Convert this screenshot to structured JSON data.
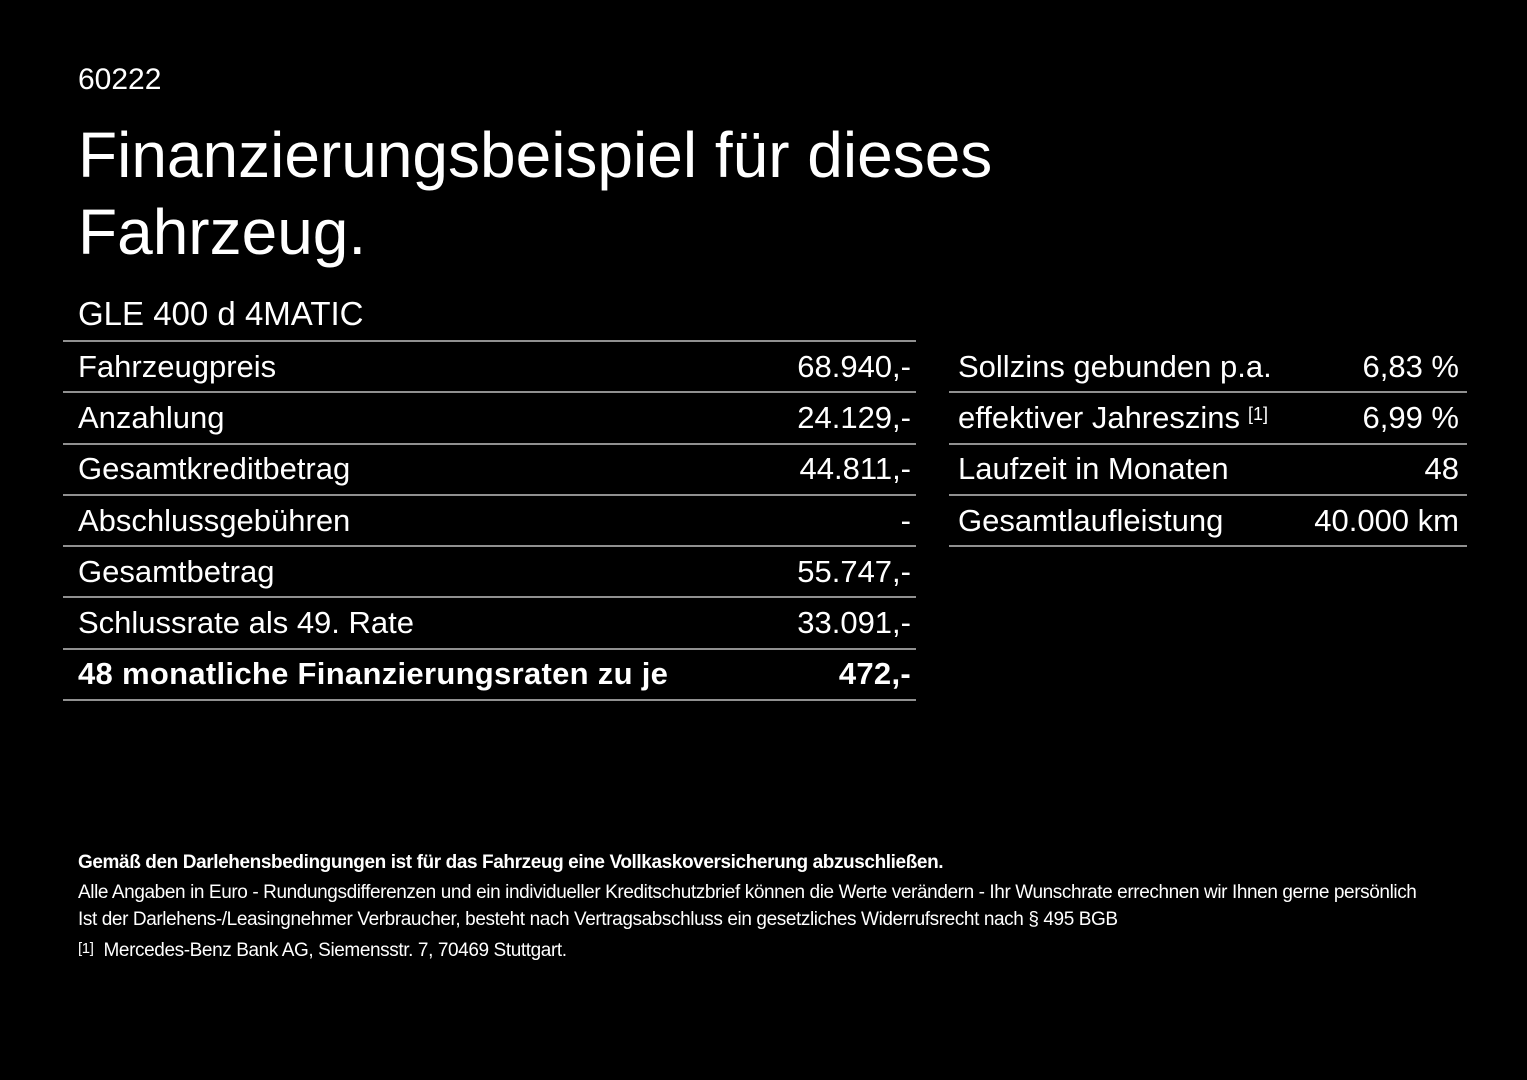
{
  "doc_id": "60222",
  "title": {
    "line1": "Finanzierungsbeispiel für dieses",
    "line2": "Fahrzeug."
  },
  "model": "GLE 400 d 4MATIC",
  "finance_table": {
    "rows": [
      {
        "label": "Fahrzeugpreis",
        "value": "68.940,-"
      },
      {
        "label": "Anzahlung",
        "value": "24.129,-"
      },
      {
        "label": "Gesamtkreditbetrag",
        "value": "44.811,-"
      },
      {
        "label": "Abschlussgebühren",
        "value": "-"
      },
      {
        "label": "Gesamtbetrag",
        "value": "55.747,-"
      },
      {
        "label": "Schlussrate als 49. Rate",
        "value": "33.091,-"
      },
      {
        "label": "48 monatliche Finanzierungsraten zu je",
        "value": "472,-"
      }
    ]
  },
  "terms_table": {
    "rows": [
      {
        "label": "Sollzins gebunden p.a.",
        "value": "6,83 %"
      },
      {
        "label": "effektiver Jahreszins",
        "sup": "[1]",
        "value": "6,99 %"
      },
      {
        "label": "Laufzeit in Monaten",
        "value": "48"
      },
      {
        "label": "Gesamtlaufleistung",
        "value": "40.000 km"
      }
    ]
  },
  "footnotes": {
    "bold_note": "Gemäß den Darlehensbedingungen ist für das Fahrzeug eine Vollkaskoversicherung abzuschließen.",
    "note1": "Alle Angaben in Euro - Rundungsdifferenzen und ein individueller Kreditschutzbrief können die Werte verändern - Ihr Wunschrate errechnen wir Ihnen gerne persönlich",
    "note2": "Ist der Darlehens-/Leasingnehmer Verbraucher, besteht nach Vertragsabschluss ein gesetzliches Widerrufsrecht nach § 495 BGB",
    "ref_marker": "[1]",
    "ref_text": "Mercedes-Benz Bank AG, Siemensstr. 7, 70469 Stuttgart."
  },
  "colors": {
    "background": "#000000",
    "text": "#ffffff",
    "divider": "#909090"
  }
}
